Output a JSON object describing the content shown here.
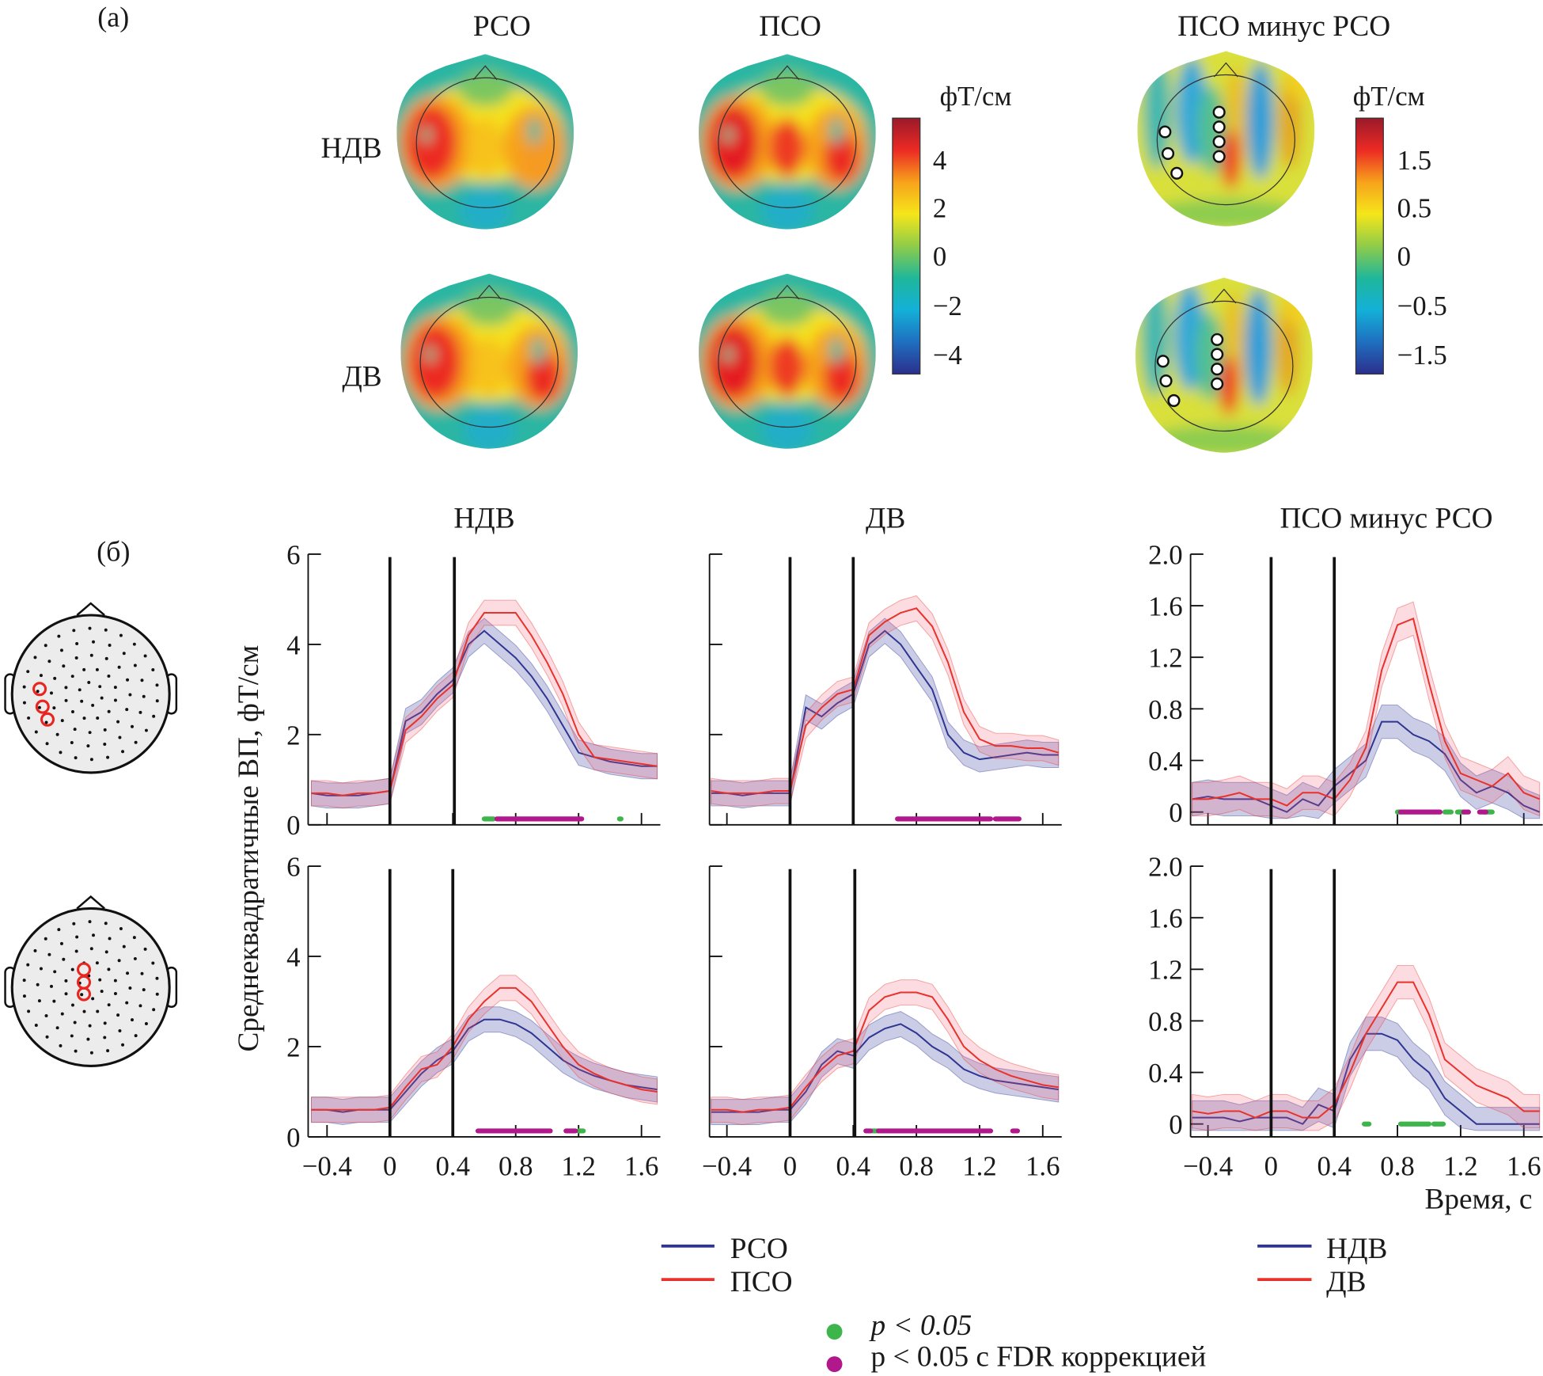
{
  "panel_a": {
    "label": "(а)",
    "col_titles": [
      "РСО",
      "ПСО",
      "ПСО минус РСО"
    ],
    "row_labels": [
      "НДВ",
      "ДВ"
    ],
    "colorbar_left": {
      "unit": "фТ/см",
      "ticks": [
        "4",
        "2",
        "0",
        "−2",
        "−4"
      ]
    },
    "colorbar_right": {
      "unit": "фТ/см",
      "ticks": [
        "1.5",
        "0.5",
        "0",
        "−0.5",
        "−1.5"
      ]
    },
    "colormap": [
      "#2b2f8c",
      "#1f6fc0",
      "#13b0d8",
      "#1fb79a",
      "#8fcc4a",
      "#f5e61a",
      "#f7a21b",
      "#ec2a24",
      "#9a1a2a"
    ]
  },
  "panel_b": {
    "label": "(б)",
    "ylabel": "Среднеквадратичные ВП, фТ/см",
    "xlabel": "Время, с"
  },
  "legend": {
    "conditions": [
      {
        "name": "РСО",
        "color": "#2f3590"
      },
      {
        "name": "ПСО",
        "color": "#e8322b"
      }
    ],
    "groups": [
      {
        "name": "НДВ",
        "color": "#2f3590"
      },
      {
        "name": "ДВ",
        "color": "#e8322b"
      }
    ],
    "significance": [
      {
        "label": "p < 0.05",
        "color": "#3db54a"
      },
      {
        "label": "p < 0.05 с FDR коррекцией",
        "color": "#b0188c"
      }
    ]
  },
  "chart_data": [
    {
      "type": "line",
      "title": "НДВ",
      "row": 1,
      "x": [
        -0.5,
        -0.4,
        -0.3,
        -0.2,
        -0.1,
        0.0,
        0.1,
        0.2,
        0.3,
        0.4,
        0.5,
        0.6,
        0.7,
        0.8,
        0.9,
        1.0,
        1.1,
        1.2,
        1.3,
        1.4,
        1.5,
        1.6,
        1.7
      ],
      "xlim": [
        -0.52,
        1.72
      ],
      "ylim": [
        0,
        6
      ],
      "xticks": [
        "−0.4",
        "0",
        "0.4",
        "0.8",
        "1.2",
        "1.6"
      ],
      "yticks": [
        "0",
        "2",
        "4",
        "6"
      ],
      "series": [
        {
          "name": "РСО",
          "values": [
            0.7,
            0.65,
            0.65,
            0.65,
            0.7,
            0.75,
            2.3,
            2.5,
            2.9,
            3.2,
            4.0,
            4.3,
            4.0,
            3.7,
            3.3,
            2.8,
            2.2,
            1.6,
            1.5,
            1.4,
            1.35,
            1.3,
            1.3
          ]
        },
        {
          "name": "ПСО",
          "values": [
            0.7,
            0.7,
            0.65,
            0.7,
            0.7,
            0.75,
            2.1,
            2.4,
            2.8,
            3.1,
            4.2,
            4.7,
            4.7,
            4.7,
            4.2,
            3.6,
            2.9,
            2.0,
            1.5,
            1.45,
            1.4,
            1.35,
            1.3
          ]
        }
      ],
      "events": [
        0,
        0.41
      ],
      "sig_p05": [
        [
          0.6,
          0.66
        ],
        [
          1.46,
          1.47
        ]
      ],
      "sig_fdr": [
        [
          0.68,
          1.22
        ]
      ]
    },
    {
      "type": "line",
      "title": "ДВ",
      "row": 1,
      "x": [
        -0.5,
        -0.4,
        -0.3,
        -0.2,
        -0.1,
        0.0,
        0.1,
        0.2,
        0.3,
        0.4,
        0.5,
        0.6,
        0.7,
        0.8,
        0.9,
        1.0,
        1.1,
        1.2,
        1.3,
        1.4,
        1.5,
        1.6,
        1.7
      ],
      "xlim": [
        -0.51,
        1.72
      ],
      "ylim": [
        0,
        6
      ],
      "xticks": [
        "−0.4",
        "0",
        "0.4",
        "0.8",
        "1.2",
        "1.6"
      ],
      "yticks": [],
      "series": [
        {
          "name": "РСО",
          "values": [
            0.7,
            0.7,
            0.65,
            0.7,
            0.7,
            0.7,
            2.6,
            2.4,
            2.7,
            2.9,
            4.0,
            4.3,
            4.0,
            3.5,
            3.0,
            2.0,
            1.6,
            1.45,
            1.5,
            1.55,
            1.6,
            1.55,
            1.55
          ]
        },
        {
          "name": "ПСО",
          "values": [
            0.75,
            0.7,
            0.7,
            0.7,
            0.75,
            0.75,
            2.2,
            2.6,
            2.9,
            3.0,
            4.2,
            4.5,
            4.7,
            4.8,
            4.4,
            3.6,
            2.5,
            1.9,
            1.75,
            1.75,
            1.7,
            1.7,
            1.6
          ]
        }
      ],
      "events": [
        0,
        0.4
      ],
      "sig_p05": [],
      "sig_fdr": [
        [
          0.68,
          1.27
        ],
        [
          1.3,
          1.45
        ]
      ]
    },
    {
      "type": "line",
      "title": "ПСО минус РСО",
      "row": 1,
      "x": [
        -0.5,
        -0.4,
        -0.3,
        -0.2,
        -0.1,
        0.0,
        0.1,
        0.2,
        0.3,
        0.4,
        0.5,
        0.6,
        0.7,
        0.8,
        0.9,
        1.0,
        1.1,
        1.2,
        1.3,
        1.4,
        1.5,
        1.6,
        1.7
      ],
      "xlim": [
        -0.51,
        1.72
      ],
      "ylim": [
        -0.1,
        2.0
      ],
      "xticks": [
        "−0.4",
        "0",
        "0.4",
        "0.8",
        "1.2",
        "1.6"
      ],
      "yticks": [
        "0",
        "0.4",
        "0.8",
        "1.2",
        "1.6",
        "2.0"
      ],
      "series": [
        {
          "name": "НДВ",
          "values": [
            0.1,
            0.12,
            0.1,
            0.1,
            0.1,
            0.05,
            0.0,
            0.1,
            0.05,
            0.2,
            0.3,
            0.4,
            0.7,
            0.7,
            0.6,
            0.55,
            0.45,
            0.25,
            0.15,
            0.2,
            0.15,
            0.05,
            0.0
          ]
        },
        {
          "name": "ДВ",
          "values": [
            0.1,
            0.1,
            0.12,
            0.15,
            0.1,
            0.1,
            0.05,
            0.15,
            0.15,
            0.1,
            0.25,
            0.5,
            1.1,
            1.45,
            1.5,
            1.0,
            0.55,
            0.3,
            0.25,
            0.2,
            0.3,
            0.15,
            0.1
          ]
        }
      ],
      "events": [
        0,
        0.4
      ],
      "sig_p05": [
        [
          0.8,
          0.82
        ],
        [
          1.1,
          1.14
        ],
        [
          1.18,
          1.22
        ],
        [
          1.35,
          1.4
        ]
      ],
      "sig_fdr": [
        [
          0.82,
          1.07
        ],
        [
          1.22,
          1.25
        ],
        [
          1.32,
          1.36
        ]
      ]
    },
    {
      "type": "line",
      "title": "",
      "row": 2,
      "x": [
        -0.5,
        -0.4,
        -0.3,
        -0.2,
        -0.1,
        0.0,
        0.1,
        0.2,
        0.3,
        0.4,
        0.5,
        0.6,
        0.7,
        0.8,
        0.9,
        1.0,
        1.1,
        1.2,
        1.3,
        1.4,
        1.5,
        1.6,
        1.7
      ],
      "xlim": [
        -0.52,
        1.72
      ],
      "ylim": [
        0,
        6
      ],
      "xticks": [
        "−0.4",
        "0",
        "0.4",
        "0.8",
        "1.2",
        "1.6"
      ],
      "yticks": [
        "0",
        "2",
        "4",
        "6"
      ],
      "series": [
        {
          "name": "РСО",
          "values": [
            0.6,
            0.6,
            0.55,
            0.6,
            0.6,
            0.6,
            1.0,
            1.4,
            1.7,
            1.9,
            2.4,
            2.6,
            2.6,
            2.5,
            2.3,
            2.0,
            1.7,
            1.5,
            1.35,
            1.25,
            1.15,
            1.1,
            1.05
          ]
        },
        {
          "name": "ПСО",
          "values": [
            0.6,
            0.6,
            0.6,
            0.6,
            0.6,
            0.65,
            1.1,
            1.5,
            1.6,
            2.0,
            2.6,
            3.0,
            3.3,
            3.3,
            3.0,
            2.5,
            2.0,
            1.6,
            1.4,
            1.25,
            1.15,
            1.05,
            1.0
          ]
        }
      ],
      "events": [
        0,
        0.4
      ],
      "sig_p05": [
        [
          1.2,
          1.23
        ]
      ],
      "sig_fdr": [
        [
          0.56,
          1.02
        ],
        [
          1.12,
          1.18
        ]
      ]
    },
    {
      "type": "line",
      "title": "",
      "row": 2,
      "x": [
        -0.5,
        -0.4,
        -0.3,
        -0.2,
        -0.1,
        0.0,
        0.1,
        0.2,
        0.3,
        0.4,
        0.5,
        0.6,
        0.7,
        0.8,
        0.9,
        1.0,
        1.1,
        1.2,
        1.3,
        1.4,
        1.5,
        1.6,
        1.7
      ],
      "xlim": [
        -0.51,
        1.72
      ],
      "ylim": [
        0,
        6
      ],
      "xticks": [
        "−0.4",
        "0",
        "0.4",
        "0.8",
        "1.2",
        "1.6"
      ],
      "yticks": [],
      "series": [
        {
          "name": "РСО",
          "values": [
            0.55,
            0.55,
            0.55,
            0.55,
            0.6,
            0.6,
            1.0,
            1.6,
            1.9,
            1.8,
            2.2,
            2.4,
            2.5,
            2.3,
            2.0,
            1.8,
            1.5,
            1.35,
            1.25,
            1.2,
            1.15,
            1.1,
            1.05
          ]
        },
        {
          "name": "ПСО",
          "values": [
            0.6,
            0.6,
            0.55,
            0.6,
            0.6,
            0.65,
            1.1,
            1.5,
            1.8,
            1.9,
            2.8,
            3.1,
            3.2,
            3.2,
            3.1,
            2.6,
            2.0,
            1.7,
            1.5,
            1.35,
            1.25,
            1.15,
            1.1
          ]
        }
      ],
      "events": [
        0,
        0.41
      ],
      "sig_p05": [
        [
          0.52,
          0.56
        ]
      ],
      "sig_fdr": [
        [
          0.48,
          0.51
        ],
        [
          0.56,
          1.27
        ],
        [
          1.41,
          1.44
        ]
      ]
    },
    {
      "type": "line",
      "title": "",
      "row": 2,
      "x": [
        -0.5,
        -0.4,
        -0.3,
        -0.2,
        -0.1,
        0.0,
        0.1,
        0.2,
        0.3,
        0.4,
        0.5,
        0.6,
        0.7,
        0.8,
        0.9,
        1.0,
        1.1,
        1.2,
        1.3,
        1.4,
        1.5,
        1.6,
        1.7
      ],
      "xlim": [
        -0.51,
        1.72
      ],
      "ylim": [
        -0.1,
        2.0
      ],
      "xticks": [
        "−0.4",
        "0",
        "0.4",
        "0.8",
        "1.2",
        "1.6"
      ],
      "yticks": [
        "0",
        "0.4",
        "0.8",
        "1.2",
        "1.6",
        "2.0"
      ],
      "series": [
        {
          "name": "НДВ",
          "values": [
            0.05,
            0.05,
            0.05,
            0.02,
            0.05,
            0.05,
            0.05,
            0.0,
            0.15,
            0.1,
            0.5,
            0.7,
            0.7,
            0.65,
            0.5,
            0.4,
            0.2,
            0.1,
            0.0,
            0.0,
            0.0,
            0.0,
            0.0
          ]
        },
        {
          "name": "ДВ",
          "values": [
            0.1,
            0.08,
            0.1,
            0.1,
            0.05,
            0.1,
            0.1,
            0.05,
            0.05,
            0.15,
            0.4,
            0.7,
            0.9,
            1.1,
            1.1,
            0.85,
            0.5,
            0.4,
            0.3,
            0.25,
            0.2,
            0.1,
            0.1
          ]
        }
      ],
      "events": [
        0,
        0.4
      ],
      "sig_p05": [
        [
          0.59,
          0.62
        ],
        [
          0.82,
          1.0
        ],
        [
          1.03,
          1.09
        ]
      ],
      "sig_fdr": []
    }
  ]
}
